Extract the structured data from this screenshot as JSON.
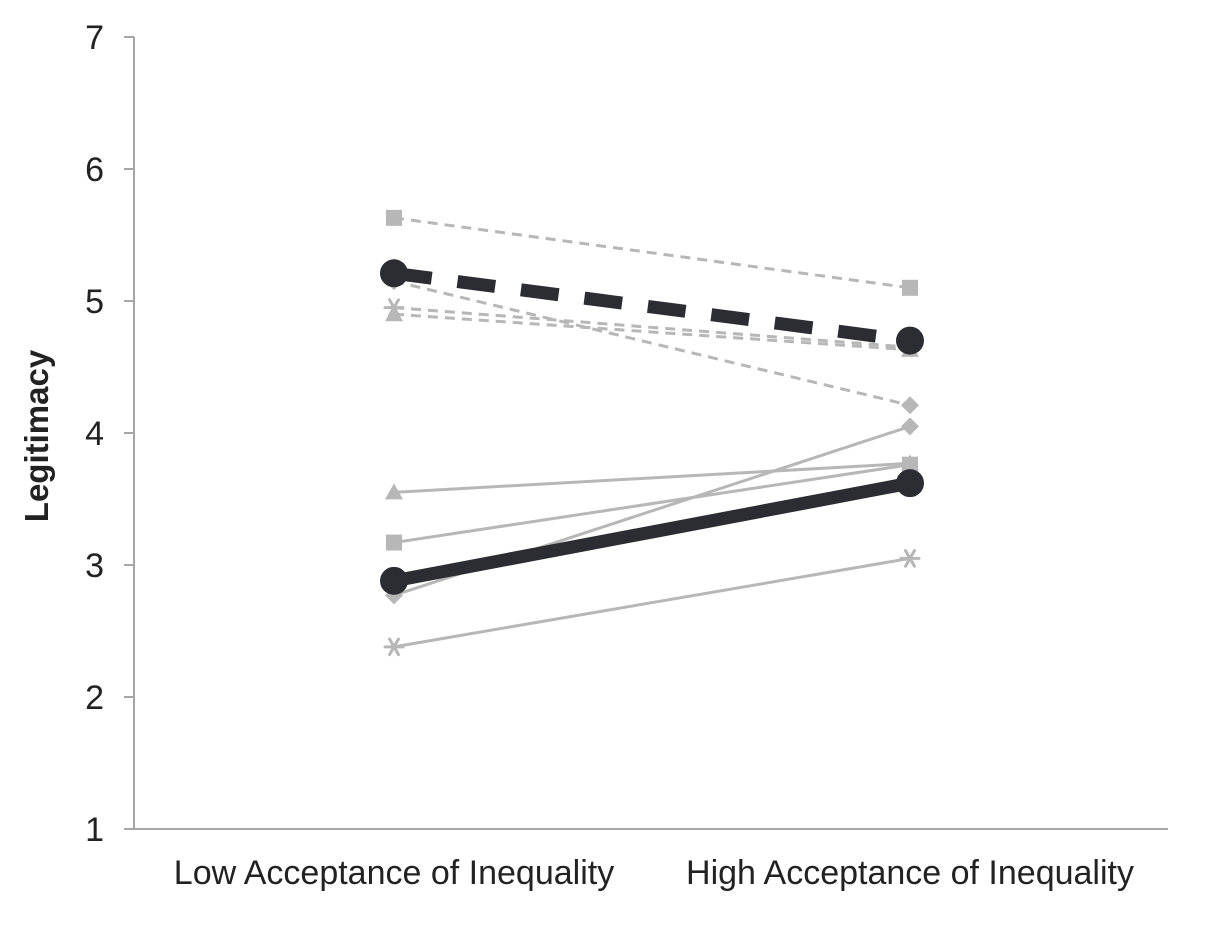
{
  "chart_data": {
    "type": "line",
    "title": "",
    "xlabel": "",
    "ylabel": "Legitimacy",
    "categories": [
      "Low Acceptance of Inequality",
      "High Acceptance of Inequality"
    ],
    "ylim": [
      1,
      7
    ],
    "yticks": [
      "1",
      "2",
      "3",
      "4",
      "5",
      "6",
      "7"
    ],
    "grid": false,
    "legend": "none",
    "colors": {
      "light": "#b7b7b7",
      "dark": "#2b2d33",
      "axis": "#a6a6a6"
    },
    "series": [
      {
        "values": [
          5.63,
          5.1
        ],
        "marker": "square",
        "style": "dashed",
        "shade": "light"
      },
      {
        "values": [
          5.15,
          4.21
        ],
        "marker": "diamond",
        "style": "dashed",
        "shade": "light"
      },
      {
        "values": [
          4.95,
          4.65
        ],
        "marker": "star",
        "style": "dashed",
        "shade": "light"
      },
      {
        "values": [
          4.9,
          4.63
        ],
        "marker": "triangle",
        "style": "dashed",
        "shade": "light"
      },
      {
        "values": [
          3.55,
          3.77
        ],
        "marker": "triangle",
        "style": "solid",
        "shade": "light"
      },
      {
        "values": [
          3.17,
          3.76
        ],
        "marker": "square",
        "style": "solid",
        "shade": "light"
      },
      {
        "values": [
          2.77,
          4.05
        ],
        "marker": "diamond",
        "style": "solid",
        "shade": "light"
      },
      {
        "values": [
          2.38,
          3.05
        ],
        "marker": "star",
        "style": "solid",
        "shade": "light"
      },
      {
        "values": [
          5.21,
          4.7
        ],
        "marker": "circle",
        "style": "dashed",
        "shade": "dark"
      },
      {
        "values": [
          2.88,
          3.62
        ],
        "marker": "circle",
        "style": "solid",
        "shade": "dark"
      }
    ]
  }
}
